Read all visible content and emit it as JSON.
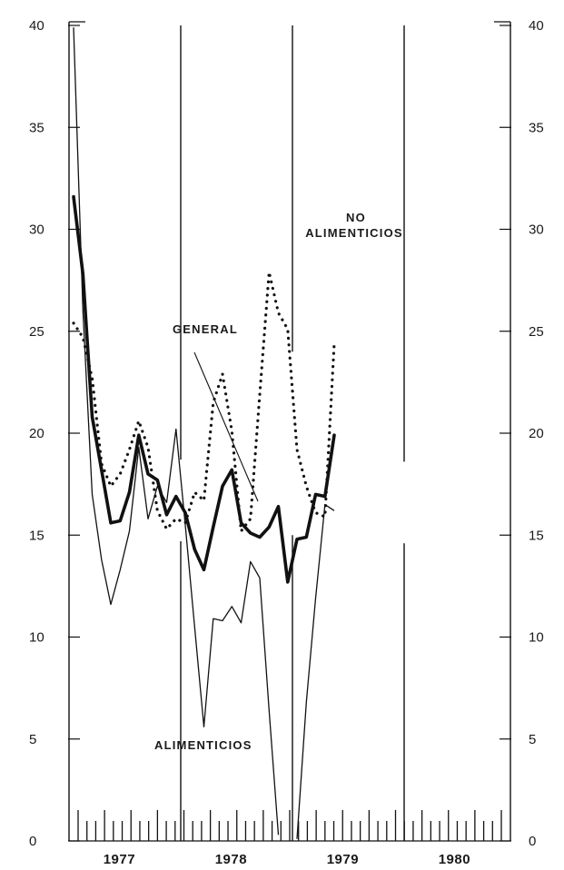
{
  "chart_data": {
    "type": "line",
    "xlabel": "",
    "ylabel": "",
    "ylim": [
      0,
      40
    ],
    "y_ticks": [
      "0",
      "5",
      "10",
      "15",
      "20",
      "25",
      "30",
      "35",
      "40"
    ],
    "x_year_labels": [
      "1977",
      "1978",
      "1979",
      "1980"
    ],
    "x_months_per_year": 12,
    "x_start": "1977-01",
    "grid": false,
    "axes_right_duplicate": true,
    "series": [
      {
        "name": "GENERAL",
        "style": "thick",
        "x_month_index": [
          0,
          1,
          2,
          3,
          4,
          5,
          6,
          7,
          8,
          9,
          10,
          11,
          12,
          13,
          14,
          15,
          16,
          17,
          18,
          19,
          20,
          21,
          22,
          23,
          24,
          25,
          26,
          27,
          28,
          29,
          30,
          31,
          32
        ],
        "values": [
          31.6,
          27.8,
          20.8,
          18.2,
          15.6,
          15.7,
          17.1,
          19.9,
          18.0,
          17.7,
          16.0,
          16.9,
          16.1,
          14.3,
          13.3,
          15.4,
          17.4,
          18.2,
          15.6,
          15.1,
          14.9,
          15.4,
          16.4,
          12.7,
          14.8,
          14.9,
          17.0,
          16.9,
          19.9,
          null,
          null,
          null,
          null
        ]
      },
      {
        "name": "ALIMENTICIOS",
        "style": "thin",
        "x_month_index": [
          0,
          1,
          2,
          3,
          4,
          5,
          6,
          7,
          8,
          9,
          10,
          11,
          12,
          13,
          14,
          15,
          16,
          17,
          18,
          19,
          20,
          21,
          22,
          23,
          24,
          25,
          26,
          27,
          28
        ],
        "values": [
          39.9,
          26.0,
          17.0,
          13.8,
          11.6,
          13.3,
          15.2,
          19.3,
          15.8,
          17.4,
          16.6,
          20.2,
          15.5,
          10.5,
          5.6,
          10.9,
          10.8,
          11.5,
          10.7,
          13.7,
          12.9,
          6.4,
          0.3,
          null,
          0.1,
          6.8,
          11.9,
          16.5,
          16.2
        ]
      },
      {
        "name": "NO ALIMENTICIOS",
        "style": "dotted",
        "x_month_index": [
          0,
          1,
          2,
          3,
          4,
          5,
          6,
          7,
          8,
          9,
          10,
          11,
          12,
          13,
          14,
          15,
          16,
          17,
          18,
          19,
          20,
          21,
          22,
          23,
          24,
          25,
          26,
          27,
          28
        ],
        "values": [
          25.4,
          24.7,
          22.7,
          18.5,
          17.4,
          18.0,
          19.2,
          20.6,
          19.3,
          16.2,
          15.3,
          15.8,
          15.6,
          17.1,
          16.7,
          21.5,
          22.9,
          20.1,
          15.2,
          15.8,
          21.9,
          27.9,
          25.9,
          25.1,
          19.2,
          17.4,
          16.1,
          15.9,
          24.4
        ]
      }
    ],
    "annotations": [
      {
        "text": "GENERAL",
        "target_series": "GENERAL"
      },
      {
        "text_lines": [
          "NO",
          "ALIMENTICIOS"
        ],
        "target_series": "NO ALIMENTICIOS"
      },
      {
        "text": "ALIMENTICIOS",
        "target_series": "ALIMENTICIOS"
      }
    ]
  }
}
